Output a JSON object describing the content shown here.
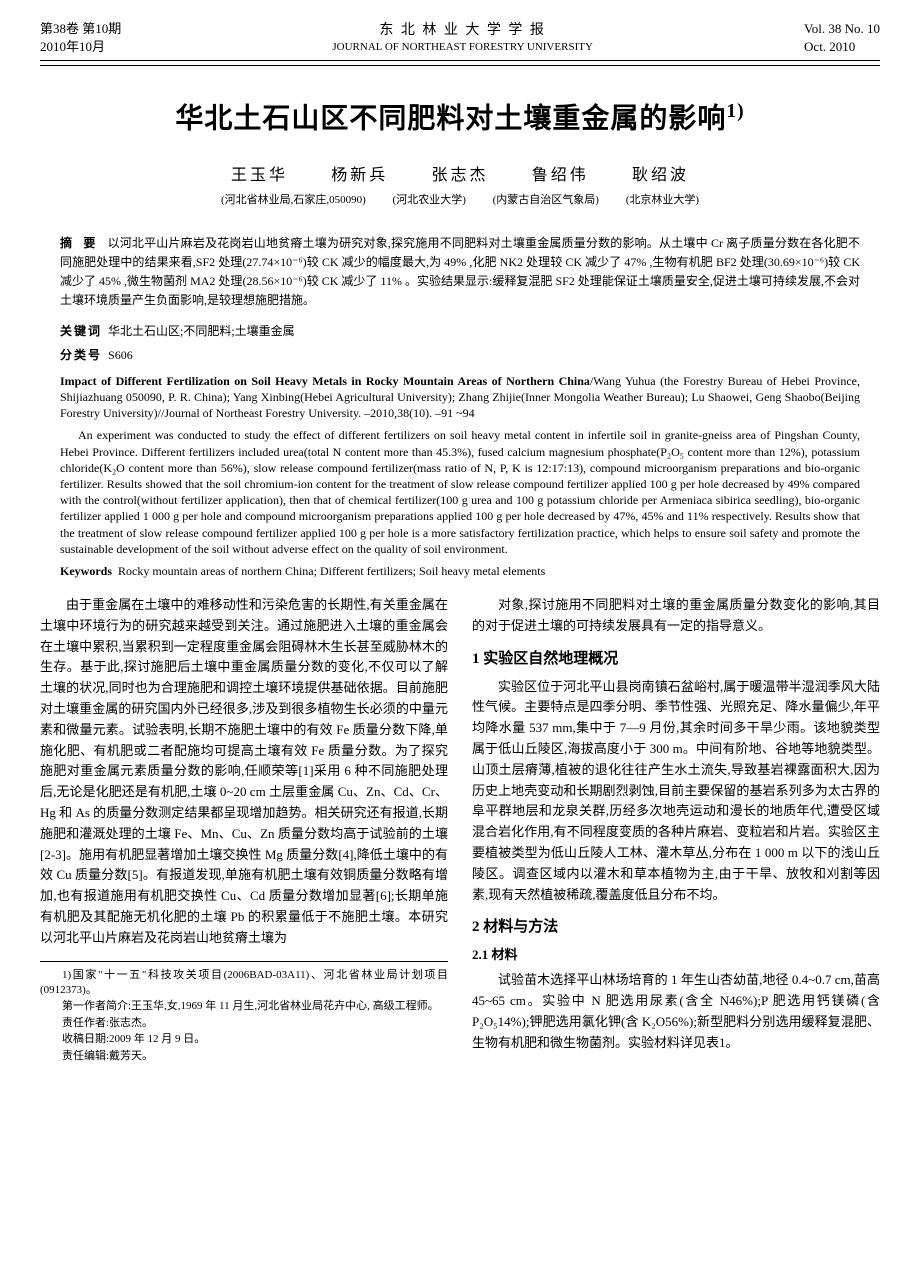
{
  "masthead": {
    "left_line1": "第38卷 第10期",
    "left_line2": "2010年10月",
    "center_cn": "东 北 林 业 大 学 学 报",
    "center_en": "JOURNAL OF NORTHEAST FORESTRY UNIVERSITY",
    "right_line1": "Vol. 38 No. 10",
    "right_line2": "Oct. 2010"
  },
  "title": "华北土石山区不同肥料对土壤重金属的影响",
  "title_sup": "1)",
  "authors": {
    "a1": "王玉华",
    "a2": "杨新兵",
    "a3": "张志杰",
    "a4": "鲁绍伟",
    "a5": "耿绍波"
  },
  "affiliations": {
    "f1": "(河北省林业局,石家庄,050090)",
    "f2": "(河北农业大学)",
    "f3": "(内蒙古自治区气象局)",
    "f4": "(北京林业大学)"
  },
  "abstract_cn": {
    "label": "摘  要",
    "text": "以河北平山片麻岩及花岗岩山地贫瘠土壤为研究对象,探究施用不同肥料对土壤重金属质量分数的影响。从土壤中 Cr 离子质量分数在各化肥不同施肥处理中的结果来看,SF2 处理(27.74×10⁻⁶)较 CK 减少的幅度最大,为 49% ,化肥 NK2 处理较 CK 减少了 47% ,生物有机肥 BF2 处理(30.69×10⁻⁶)较 CK 减少了 45% ,微生物菌剂 MA2 处理(28.56×10⁻⁶)较 CK 减少了 11% 。实验结果显示:缓释复混肥 SF2 处理能保证土壤质量安全,促进土壤可持续发展,不会对土壤环境质量产生负面影响,是较理想施肥措施。"
  },
  "keywords_cn": {
    "label": "关键词",
    "text": "华北土石山区;不同肥料;土壤重金属"
  },
  "classnum": {
    "label": "分类号",
    "text": "S606"
  },
  "en": {
    "title": "Impact of Different Fertilization on Soil Heavy Metals in Rocky Mountain Areas of Northern China",
    "authors": "/Wang Yuhua (the Forestry Bureau of Hebei Province, Shijiazhuang 050090, P. R. China); Yang Xinbing(Hebei Agricultural University); Zhang Zhijie(Inner Mongolia Weather Bureau); Lu Shaowei, Geng Shaobo(Beijing Forestry University)//Journal of Northeast Forestry University. –2010,38(10). –91 ~94",
    "abstract": "An experiment was conducted to study the effect of different fertilizers on soil heavy metal content in infertile soil in granite-gneiss area of Pingshan County, Hebei Province. Different fertilizers included urea(total N content more than 45.3%), fused calcium magnesium phosphate(P₂O₅ content more than 12%), potassium chloride(K₂O content more than 56%), slow release compound fertilizer(mass ratio of N, P, K is 12:17:13), compound microorganism preparations and bio-organic fertilizer. Results showed that the soil chromium-ion content for the treatment of slow release compound fertilizer applied 100 g per hole decreased by 49% compared with the control(without fertilizer application), then that of chemical fertilizer(100 g urea and 100 g potassium chloride per Armeniaca sibirica seedling), bio-organic fertilizer applied 1 000 g per hole and compound microorganism preparations applied 100 g per hole decreased by 47%, 45% and 11% respectively. Results show that the treatment of slow release compound fertilizer applied 100 g per hole is a more satisfactory fertilization practice, which helps to ensure soil safety and promote the sustainable development of the soil without adverse effect on the quality of soil environment.",
    "keywords_label": "Keywords",
    "keywords": "Rocky mountain areas of northern China; Different fertilizers; Soil heavy metal elements"
  },
  "body": {
    "p1": "由于重金属在土壤中的难移动性和污染危害的长期性,有关重金属在土壤中环境行为的研究越来越受到关注。通过施肥进入土壤的重金属会在土壤中累积,当累积到一定程度重金属会阻碍林木生长甚至威胁林木的生存。基于此,探讨施肥后土壤中重金属质量分数的变化,不仅可以了解土壤的状况,同时也为合理施肥和调控土壤环境提供基础依据。目前施肥对土壤重金属的研究国内外已经很多,涉及到很多植物生长必须的中量元素和微量元素。试验表明,长期不施肥土壤中的有效 Fe 质量分数下降,单施化肥、有机肥或二者配施均可提高土壤有效 Fe 质量分数。为了探究施肥对重金属元素质量分数的影响,任顺荣等[1]采用 6 种不同施肥处理后,无论是化肥还是有机肥,土壤 0~20 cm 土层重金属 Cu、Zn、Cd、Cr、Hg 和 As 的质量分数测定结果都呈现增加趋势。相关研究还有报道,长期施肥和灌溉处理的土壤 Fe、Mn、Cu、Zn 质量分数均高于试验前的土壤[2-3]。施用有机肥显著增加土壤交换性 Mg 质量分数[4],降低土壤中的有效 Cu 质量分数[5]。有报道发现,单施有机肥土壤有效铜质量分数略有增加,也有报道施用有机肥交换性 Cu、Cd 质量分数增加显著[6];长期单施有机肥及其配施无机化肥的土壤 Pb 的积累量低于不施肥土壤。本研究以河北平山片麻岩及花岗岩山地贫瘠土壤为",
    "p2": "对象,探讨施用不同肥料对土壤的重金属质量分数变化的影响,其目的对于促进土壤的可持续发展具有一定的指导意义。",
    "h1": "1  实验区自然地理概况",
    "p3": "实验区位于河北平山县岗南镇石盆峪村,属于暖温带半湿润季风大陆性气候。主要特点是四季分明、季节性强、光照充足、降水量偏少,年平均降水量 537 mm,集中于 7—9 月份,其余时间多干旱少雨。该地貌类型属于低山丘陵区,海拔高度小于 300 m。中间有阶地、谷地等地貌类型。山顶土层瘠薄,植被的退化往往产生水土流失,导致基岩裸露面积大,因为历史上地壳变动和长期剧烈剥蚀,目前主要保留的基岩系列多为太古界的阜平群地层和龙泉关群,历经多次地壳运动和漫长的地质年代,遭受区域混合岩化作用,有不同程度变质的各种片麻岩、变粒岩和片岩。实验区主要植被类型为低山丘陵人工林、灌木草丛,分布在 1 000 m 以下的浅山丘陵区。调查区域内以灌木和草本植物为主,由于干旱、放牧和刈割等因素,现有天然植被稀疏,覆盖度低且分布不均。",
    "h2": "2  材料与方法",
    "h2_1": "2.1  材料",
    "p4": "试验苗木选择平山林场培育的 1 年生山杏幼苗,地径 0.4~0.7 cm,苗高 45~65 cm。实验中 N 肥选用尿素(含全 N46%);P 肥选用钙镁磷(含 P₂O₅14%);钾肥选用氯化钾(含 K₂O56%);新型肥料分别选用缓释复混肥、生物有机肥和微生物菌剂。实验材料详见表1。"
  },
  "footnotes": {
    "n1": "1)国家\"十一五\"科技攻关项目(2006BAD-03A11)、河北省林业局计划项目(0912373)。",
    "n2": "第一作者简介:王玉华,女,1969 年 11 月生,河北省林业局花卉中心, 高级工程师。",
    "n3": "责任作者:张志杰。",
    "n4": "收稿日期:2009 年 12 月 9 日。",
    "n5": "责任编辑:戴芳天。"
  }
}
